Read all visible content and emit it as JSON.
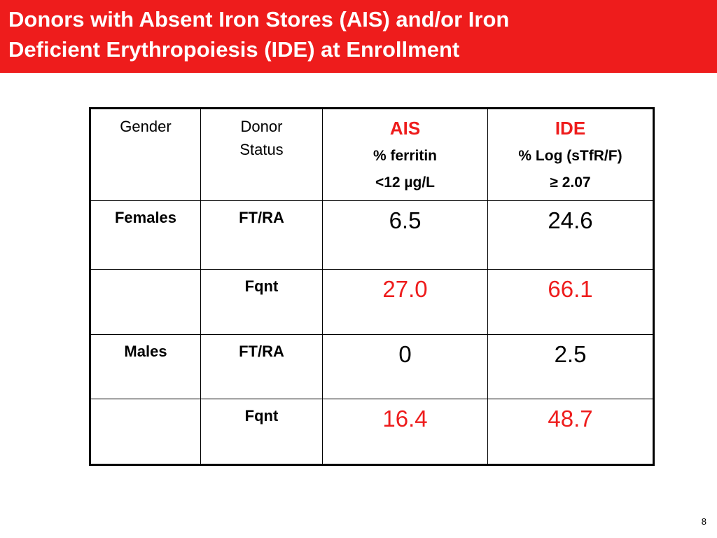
{
  "slide": {
    "title_line1": "Donors with Absent Iron Stores (AIS) and/or Iron",
    "title_line2": "Deficient Erythropoiesis (IDE) at Enrollment",
    "page_number": "8"
  },
  "colors": {
    "accent_red": "#ee1c1c",
    "title_text": "#ffffff",
    "body_text": "#000000"
  },
  "table": {
    "headers": {
      "gender": "Gender",
      "donor_status_line1": "Donor",
      "donor_status_line2": "Status",
      "ais_title": "AIS",
      "ais_sub1": "% ferritin",
      "ais_sub2": "<12 µg/L",
      "ide_title": "IDE",
      "ide_sub1": "% Log (sTfR/F)",
      "ide_sub2": "≥ 2.07"
    },
    "rows": [
      {
        "gender": "Females",
        "status": "FT/RA",
        "ais": "6.5",
        "ide": "24.6",
        "highlight": false
      },
      {
        "gender": "",
        "status": "Fqnt",
        "ais": "27.0",
        "ide": "66.1",
        "highlight": true
      },
      {
        "gender": "Males",
        "status": "FT/RA",
        "ais": "0",
        "ide": "2.5",
        "highlight": false
      },
      {
        "gender": "",
        "status": "Fqnt",
        "ais": "16.4",
        "ide": "48.7",
        "highlight": true
      }
    ]
  }
}
